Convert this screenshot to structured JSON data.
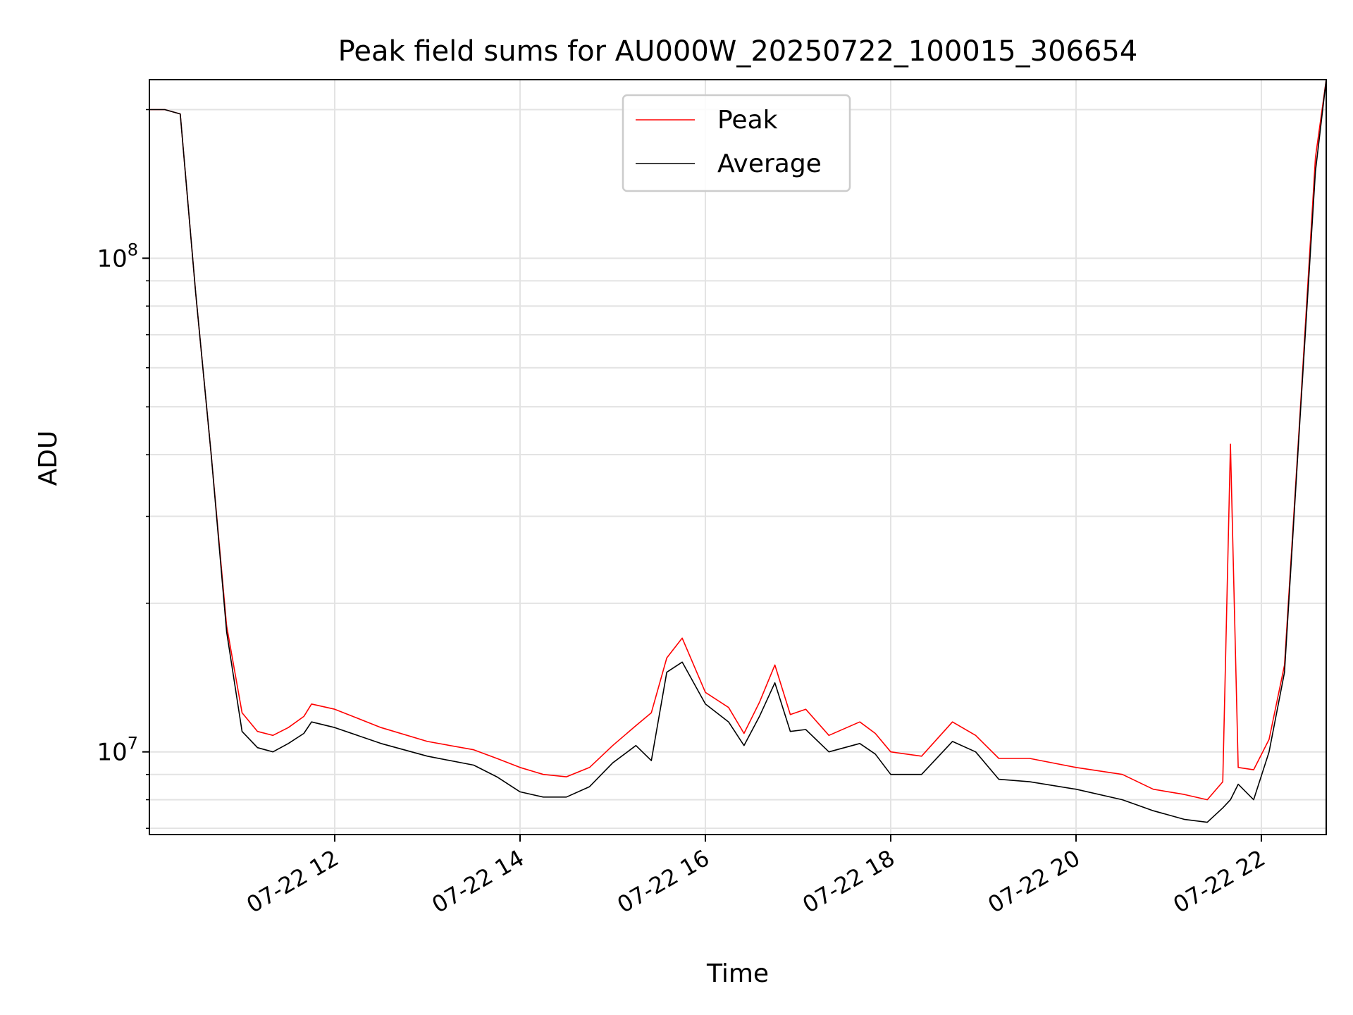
{
  "chart_data": {
    "type": "line",
    "title": "Peak field sums for AU000W_20250722_100015_306654",
    "xlabel": "Time",
    "ylabel": "ADU",
    "yscale": "log",
    "ylim": [
      6800000,
      230000000
    ],
    "xlim": [
      "2025-07-22 10:00",
      "2025-07-22 22:42"
    ],
    "grid": true,
    "legend_position": "top-center",
    "x_ticks": [
      "07-22 12",
      "07-22 14",
      "07-22 16",
      "07-22 18",
      "07-22 20",
      "07-22 22"
    ],
    "y_ticks": [
      {
        "mantissa": "10",
        "exponent": "7",
        "value": 10000000
      },
      {
        "mantissa": "10",
        "exponent": "8",
        "value": 100000000
      }
    ],
    "x": [
      "2025-07-22 10:00",
      "2025-07-22 10:10",
      "2025-07-22 10:20",
      "2025-07-22 10:30",
      "2025-07-22 10:40",
      "2025-07-22 10:50",
      "2025-07-22 11:00",
      "2025-07-22 11:10",
      "2025-07-22 11:20",
      "2025-07-22 11:30",
      "2025-07-22 11:40",
      "2025-07-22 11:45",
      "2025-07-22 12:00",
      "2025-07-22 12:30",
      "2025-07-22 13:00",
      "2025-07-22 13:30",
      "2025-07-22 13:45",
      "2025-07-22 14:00",
      "2025-07-22 14:15",
      "2025-07-22 14:30",
      "2025-07-22 14:45",
      "2025-07-22 15:00",
      "2025-07-22 15:15",
      "2025-07-22 15:25",
      "2025-07-22 15:35",
      "2025-07-22 15:45",
      "2025-07-22 16:00",
      "2025-07-22 16:15",
      "2025-07-22 16:25",
      "2025-07-22 16:35",
      "2025-07-22 16:45",
      "2025-07-22 16:55",
      "2025-07-22 17:05",
      "2025-07-22 17:20",
      "2025-07-22 17:40",
      "2025-07-22 17:50",
      "2025-07-22 18:00",
      "2025-07-22 18:20",
      "2025-07-22 18:40",
      "2025-07-22 18:55",
      "2025-07-22 19:10",
      "2025-07-22 19:30",
      "2025-07-22 20:00",
      "2025-07-22 20:30",
      "2025-07-22 20:50",
      "2025-07-22 21:10",
      "2025-07-22 21:25",
      "2025-07-22 21:35",
      "2025-07-22 21:40",
      "2025-07-22 21:45",
      "2025-07-22 21:55",
      "2025-07-22 22:05",
      "2025-07-22 22:15",
      "2025-07-22 22:25",
      "2025-07-22 22:35",
      "2025-07-22 22:42"
    ],
    "series": [
      {
        "name": "Peak",
        "color": "#ff0000",
        "values": [
          200000000,
          200000000,
          196000000,
          85000000,
          40000000,
          18000000,
          12000000,
          11000000,
          10800000,
          11200000,
          11800000,
          12500000,
          12200000,
          11200000,
          10500000,
          10100000,
          9700000,
          9300000,
          9000000,
          8900000,
          9300000,
          10300000,
          11300000,
          12000000,
          15500000,
          17000000,
          13200000,
          12300000,
          10900000,
          12600000,
          15000000,
          11900000,
          12200000,
          10800000,
          11500000,
          10900000,
          10000000,
          9800000,
          11500000,
          10800000,
          9700000,
          9700000,
          9300000,
          9000000,
          8400000,
          8200000,
          8000000,
          8700000,
          42000000,
          9300000,
          9200000,
          10600000,
          15000000,
          48000000,
          160000000,
          230000000
        ]
      },
      {
        "name": "Average",
        "color": "#000000",
        "values": [
          200000000,
          200000000,
          196000000,
          85000000,
          40000000,
          17500000,
          11000000,
          10200000,
          10000000,
          10400000,
          10900000,
          11500000,
          11200000,
          10400000,
          9800000,
          9400000,
          8900000,
          8300000,
          8100000,
          8100000,
          8500000,
          9500000,
          10300000,
          9600000,
          14500000,
          15200000,
          12500000,
          11500000,
          10300000,
          11800000,
          13800000,
          11000000,
          11100000,
          10000000,
          10400000,
          9900000,
          9000000,
          9000000,
          10500000,
          10000000,
          8800000,
          8700000,
          8400000,
          8000000,
          7600000,
          7300000,
          7200000,
          7700000,
          8000000,
          8600000,
          8000000,
          10000000,
          14500000,
          47000000,
          150000000,
          230000000
        ]
      }
    ]
  }
}
